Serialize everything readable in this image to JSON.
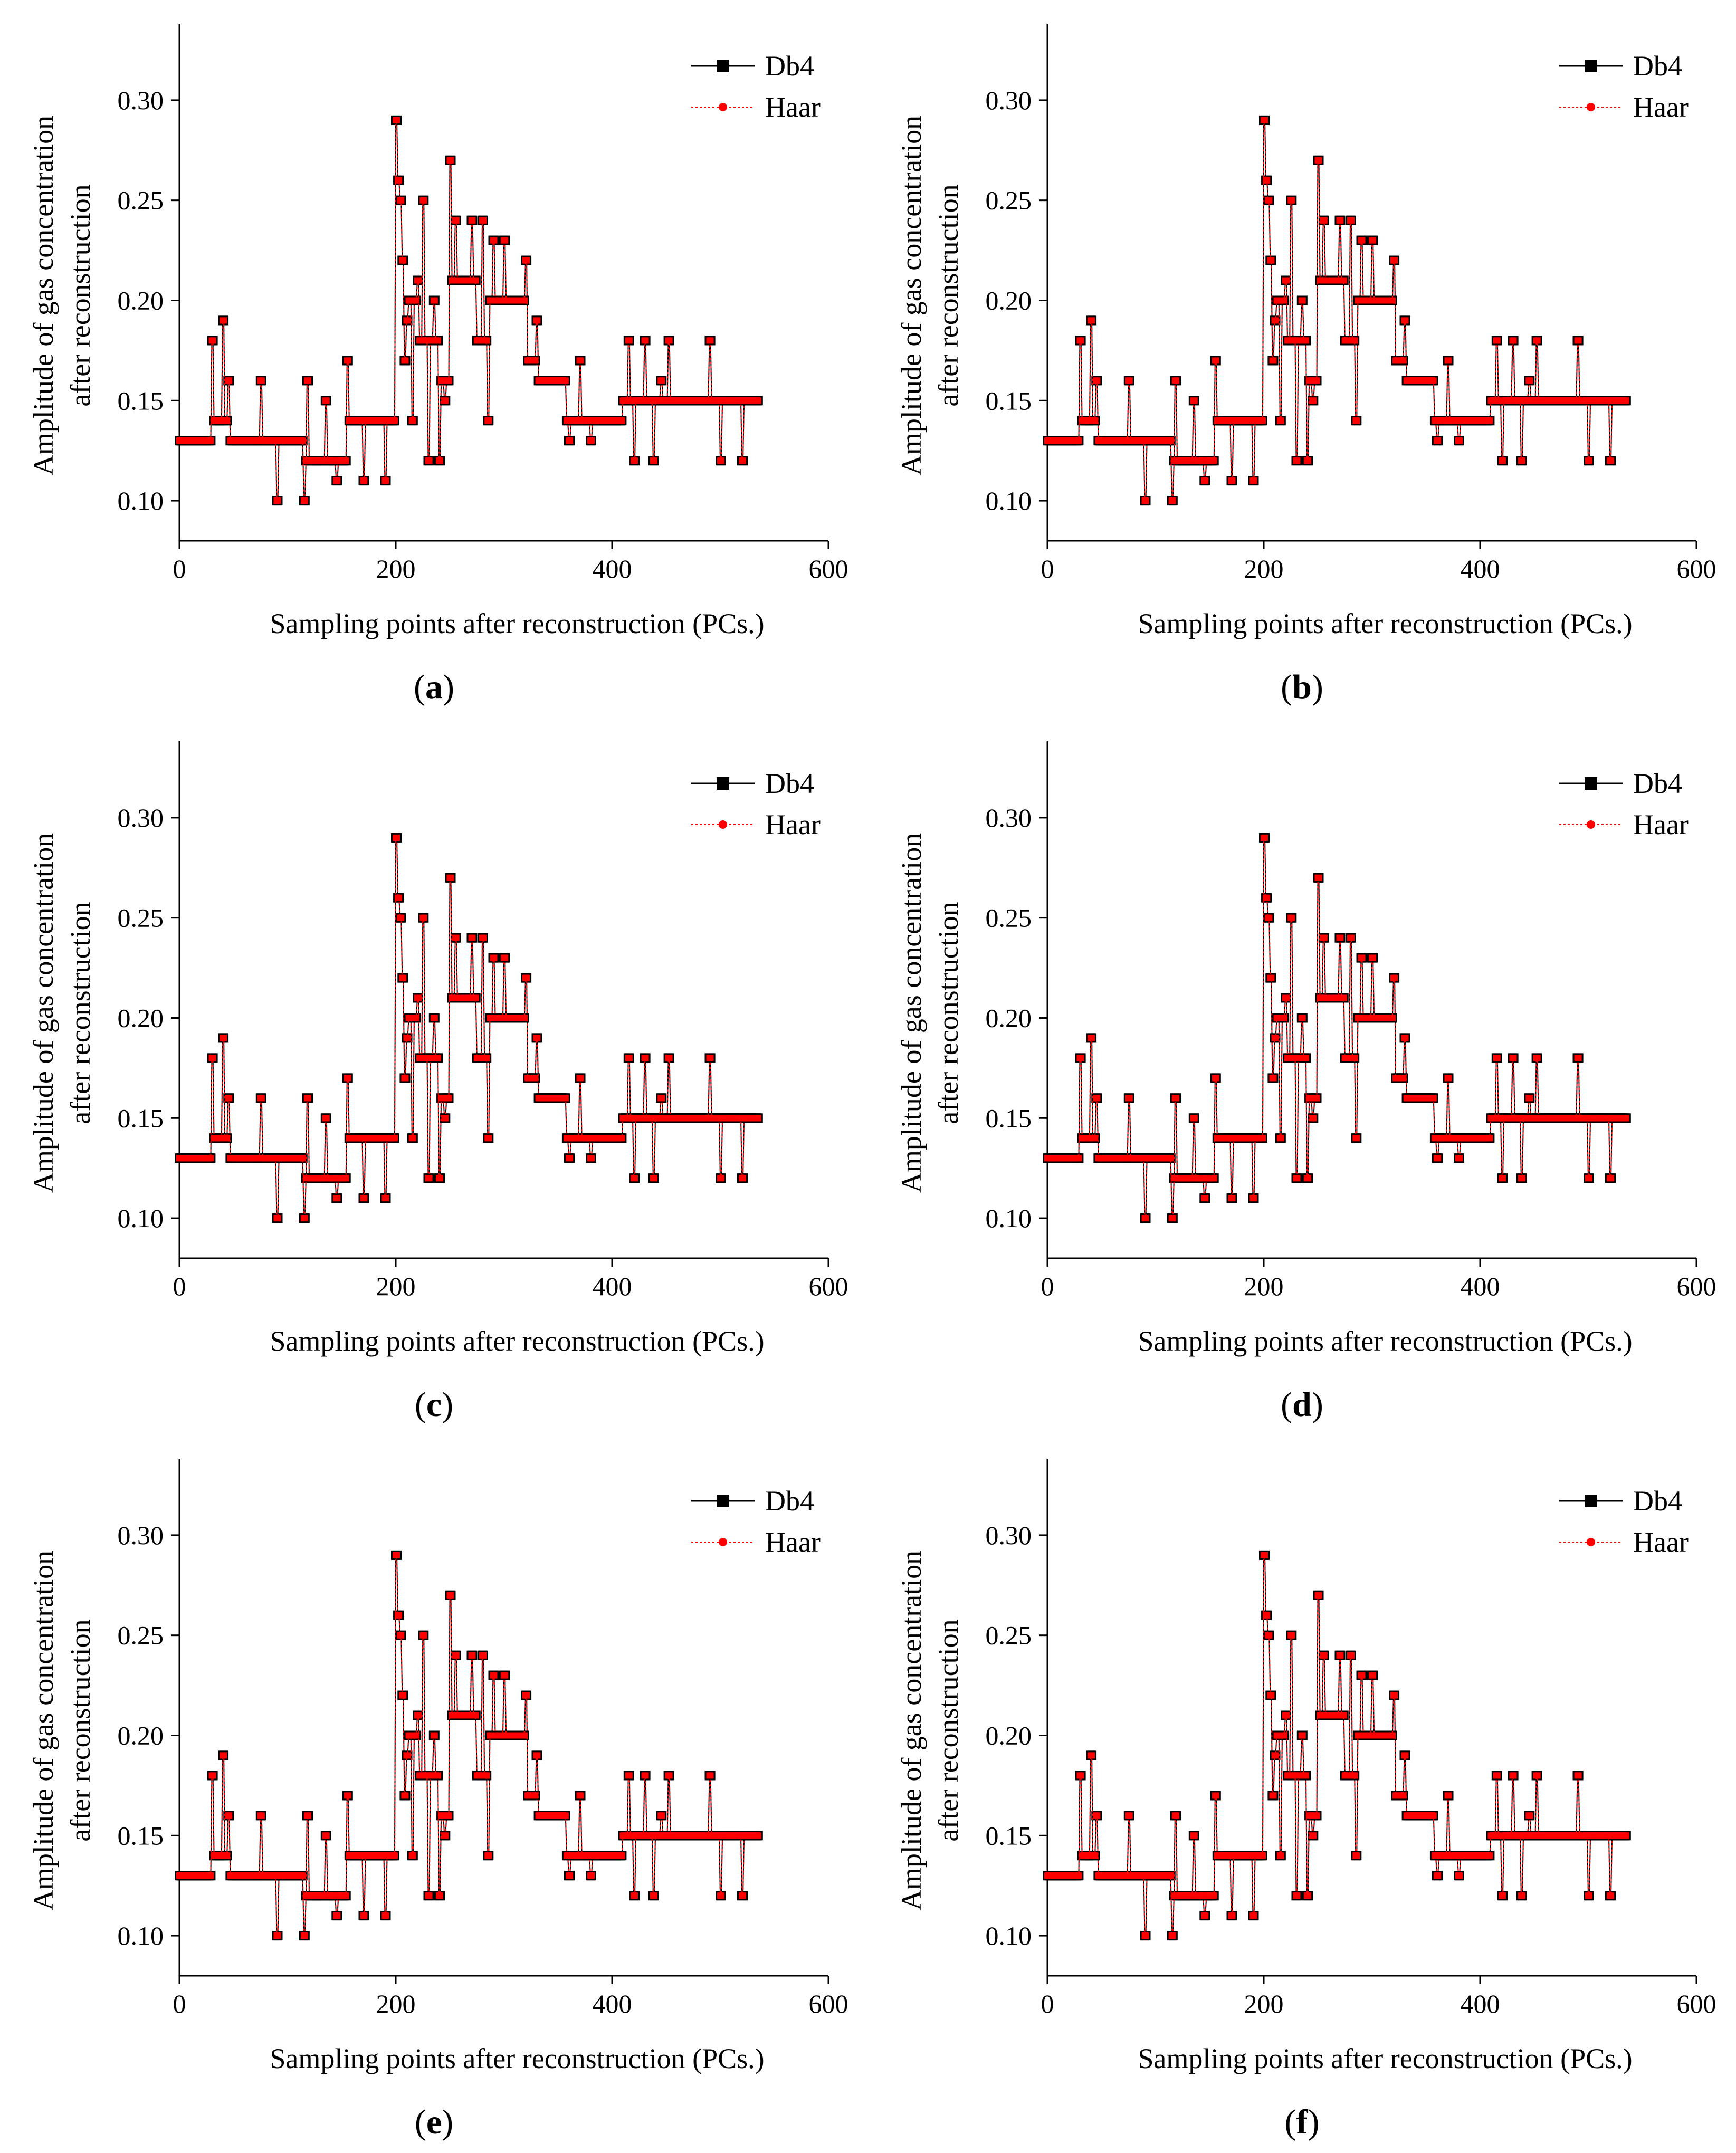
{
  "figure": {
    "panels": [
      {
        "id": "a",
        "label_open": "(",
        "label_letter": "a",
        "label_close": ")"
      },
      {
        "id": "b",
        "label_open": "(",
        "label_letter": "b",
        "label_close": ")"
      },
      {
        "id": "c",
        "label_open": "(",
        "label_letter": "c",
        "label_close": ")"
      },
      {
        "id": "d",
        "label_open": "(",
        "label_letter": "d",
        "label_close": ")"
      },
      {
        "id": "e",
        "label_open": "(",
        "label_letter": "e",
        "label_close": ")"
      },
      {
        "id": "f",
        "label_open": "(",
        "label_letter": "f",
        "label_close": ")"
      }
    ]
  },
  "chart_data": {
    "type": "line",
    "panel_count": 6,
    "xlabel": "Sampling points after reconstruction (PCs.)",
    "ylabel_line1": "Amplitude of gas concentration",
    "ylabel_line2": "after reconstruction",
    "xlim": [
      0,
      600
    ],
    "ylim": [
      0.08,
      0.325
    ],
    "xticks": [
      0,
      200,
      400,
      600
    ],
    "xtick_labels": [
      "0",
      "200",
      "400",
      "600"
    ],
    "yticks": [
      0.1,
      0.15,
      0.2,
      0.25,
      0.3
    ],
    "ytick_labels": [
      "0.10",
      "0.15",
      "0.20",
      "0.25",
      "0.30"
    ],
    "legend_position": "top-right",
    "series": [
      {
        "name": "Db4",
        "color": "#000000",
        "marker": "square"
      },
      {
        "name": "Haar",
        "color": "#ff0000",
        "marker": "circle"
      }
    ],
    "step_segments": [
      [
        0,
        0.13
      ],
      [
        30,
        0.14
      ],
      [
        45,
        0.13
      ],
      [
        115,
        0.12
      ],
      [
        155,
        0.14
      ],
      [
        200,
        0.17
      ],
      [
        210,
        0.2
      ],
      [
        220,
        0.18
      ],
      [
        240,
        0.16
      ],
      [
        250,
        0.21
      ],
      [
        275,
        0.18
      ],
      [
        285,
        0.2
      ],
      [
        320,
        0.17
      ],
      [
        330,
        0.16
      ],
      [
        358,
        0.14
      ],
      [
        410,
        0.15
      ],
      [
        535,
        0.15
      ]
    ],
    "spikes": [
      [
        30,
        0.18
      ],
      [
        40,
        0.19
      ],
      [
        45,
        0.16
      ],
      [
        75,
        0.16
      ],
      [
        90,
        0.1
      ],
      [
        115,
        0.1
      ],
      [
        118,
        0.16
      ],
      [
        135,
        0.15
      ],
      [
        145,
        0.11
      ],
      [
        155,
        0.17
      ],
      [
        170,
        0.11
      ],
      [
        190,
        0.11
      ],
      [
        200,
        0.29
      ],
      [
        202,
        0.26
      ],
      [
        204,
        0.25
      ],
      [
        206,
        0.22
      ],
      [
        210,
        0.19
      ],
      [
        215,
        0.14
      ],
      [
        220,
        0.21
      ],
      [
        225,
        0.25
      ],
      [
        230,
        0.12
      ],
      [
        235,
        0.2
      ],
      [
        240,
        0.12
      ],
      [
        245,
        0.15
      ],
      [
        250,
        0.27
      ],
      [
        255,
        0.24
      ],
      [
        260,
        0.21
      ],
      [
        270,
        0.24
      ],
      [
        280,
        0.24
      ],
      [
        285,
        0.14
      ],
      [
        290,
        0.23
      ],
      [
        300,
        0.23
      ],
      [
        320,
        0.22
      ],
      [
        330,
        0.19
      ],
      [
        360,
        0.13
      ],
      [
        370,
        0.17
      ],
      [
        380,
        0.13
      ],
      [
        415,
        0.18
      ],
      [
        420,
        0.12
      ],
      [
        430,
        0.18
      ],
      [
        438,
        0.12
      ],
      [
        445,
        0.16
      ],
      [
        452,
        0.18
      ],
      [
        490,
        0.18
      ],
      [
        500,
        0.12
      ],
      [
        520,
        0.12
      ]
    ]
  }
}
